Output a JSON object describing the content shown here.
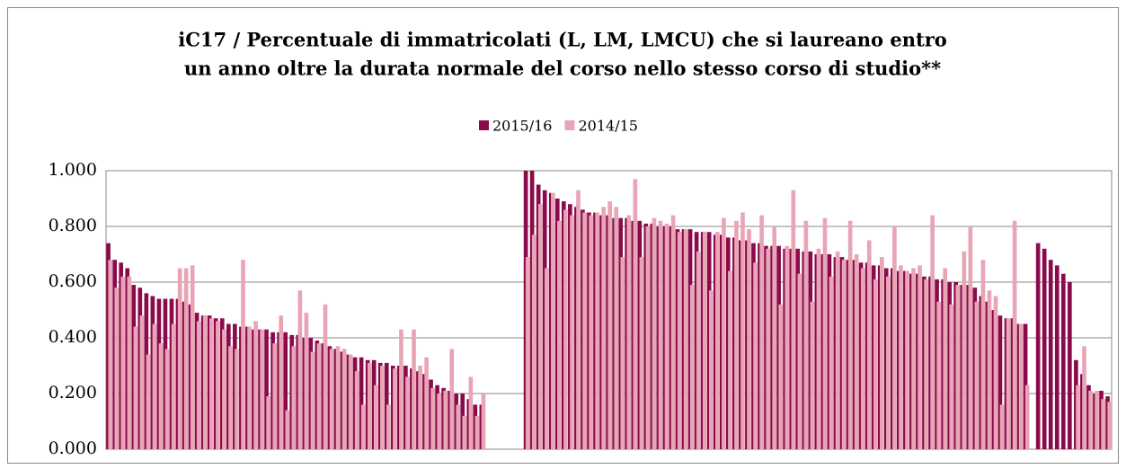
{
  "chart_data": {
    "type": "bar",
    "title": [
      "iC17 / Percentuale di immatricolati (L, LM, LMCU) che si laureano entro",
      "un anno oltre la durata normale del corso nello stesso corso di studio**"
    ],
    "categories": [
      null,
      null,
      null,
      null,
      null,
      null,
      null,
      null,
      null,
      null,
      null,
      null,
      null,
      null,
      null,
      null,
      null,
      null,
      null,
      null,
      null,
      null,
      null,
      null,
      null,
      null,
      null,
      null,
      null,
      null,
      null,
      null,
      null,
      null,
      null,
      null,
      null,
      null,
      null,
      null,
      null,
      null,
      null,
      null,
      null,
      null,
      null,
      null,
      null,
      null,
      null,
      null,
      null,
      null,
      null,
      null,
      null,
      null,
      null,
      null,
      null,
      null,
      null,
      null,
      null,
      null,
      null,
      null,
      null,
      null,
      null,
      null,
      null,
      null,
      null,
      null,
      null,
      null,
      null,
      null,
      null,
      null,
      null,
      null,
      null,
      null,
      null,
      null,
      null,
      null,
      null,
      null,
      null,
      null,
      null,
      null,
      null,
      null,
      null,
      null,
      null,
      null,
      null,
      null,
      null,
      null,
      null,
      null,
      null,
      null,
      null,
      null,
      null,
      null,
      null,
      null,
      null,
      null,
      null,
      null,
      null,
      null,
      null,
      null,
      null,
      null,
      null,
      null,
      null,
      null,
      null,
      null,
      null,
      null,
      null,
      null,
      null,
      null,
      null,
      null,
      null,
      null,
      null,
      null,
      null,
      null,
      null,
      null,
      null,
      null,
      null,
      null,
      null,
      null,
      null,
      null,
      null,
      null,
      null
    ],
    "series": [
      {
        "name": "2015/16",
        "color": "#8b0a4c",
        "values": [
          0.74,
          0.68,
          0.67,
          0.65,
          0.59,
          0.58,
          0.56,
          0.55,
          0.54,
          0.54,
          0.54,
          0.54,
          0.53,
          0.52,
          0.49,
          0.48,
          0.48,
          0.47,
          0.47,
          0.45,
          0.45,
          0.44,
          0.44,
          0.43,
          0.43,
          0.43,
          0.42,
          0.42,
          0.42,
          0.41,
          0.41,
          0.4,
          0.4,
          0.39,
          0.38,
          0.37,
          0.36,
          0.35,
          0.34,
          0.33,
          0.33,
          0.32,
          0.32,
          0.31,
          0.31,
          0.3,
          0.3,
          0.3,
          0.29,
          0.28,
          0.27,
          0.25,
          0.23,
          0.22,
          0.21,
          0.2,
          0.2,
          0.18,
          0.16,
          0.16,
          null,
          null,
          null,
          null,
          null,
          null,
          1.0,
          1.0,
          0.95,
          0.93,
          0.92,
          0.9,
          0.89,
          0.88,
          0.87,
          0.86,
          0.85,
          0.85,
          0.84,
          0.84,
          0.83,
          0.83,
          0.83,
          0.82,
          0.82,
          0.81,
          0.81,
          0.8,
          0.8,
          0.8,
          0.79,
          0.79,
          0.79,
          0.78,
          0.78,
          0.78,
          0.77,
          0.77,
          0.76,
          0.76,
          0.75,
          0.75,
          0.74,
          0.74,
          0.73,
          0.73,
          0.73,
          0.72,
          0.72,
          0.72,
          0.71,
          0.71,
          0.7,
          0.7,
          0.7,
          0.69,
          0.69,
          0.68,
          0.68,
          0.67,
          0.67,
          0.66,
          0.66,
          0.65,
          0.65,
          0.64,
          0.64,
          0.63,
          0.63,
          0.62,
          0.62,
          0.61,
          0.61,
          0.6,
          0.6,
          0.59,
          0.59,
          0.58,
          0.55,
          0.53,
          0.5,
          0.48,
          0.47,
          0.47,
          0.45,
          0.45,
          null,
          0.74,
          0.72,
          0.68,
          0.66,
          0.63,
          0.6,
          0.32,
          0.27,
          0.23,
          0.2,
          0.21,
          0.19
        ]
      },
      {
        "name": "2014/15",
        "color": "#e8a5b5",
        "values": [
          0.68,
          0.58,
          0.62,
          0.62,
          0.44,
          0.48,
          0.34,
          0.45,
          0.38,
          0.36,
          0.45,
          0.65,
          0.65,
          0.66,
          0.46,
          0.48,
          0.47,
          0.46,
          0.43,
          0.37,
          0.36,
          0.68,
          0.44,
          0.46,
          0.43,
          0.19,
          0.38,
          0.48,
          0.14,
          0.37,
          0.57,
          0.49,
          0.35,
          0.38,
          0.52,
          0.36,
          0.37,
          0.36,
          0.34,
          0.28,
          0.16,
          0.31,
          0.23,
          0.3,
          0.16,
          0.29,
          0.43,
          0.26,
          0.43,
          0.3,
          0.33,
          0.22,
          0.2,
          0.21,
          0.36,
          0.16,
          0.12,
          0.26,
          0.12,
          0.2,
          null,
          null,
          null,
          null,
          null,
          null,
          0.69,
          0.77,
          0.88,
          0.65,
          0.92,
          0.82,
          0.86,
          0.84,
          0.93,
          0.85,
          0.84,
          0.85,
          0.87,
          0.89,
          0.87,
          0.69,
          0.84,
          0.97,
          0.69,
          0.8,
          0.83,
          0.82,
          0.81,
          0.84,
          0.78,
          0.79,
          0.59,
          0.71,
          0.78,
          0.57,
          0.78,
          0.83,
          0.64,
          0.82,
          0.85,
          0.79,
          0.67,
          0.84,
          0.72,
          0.8,
          0.52,
          0.73,
          0.93,
          0.63,
          0.82,
          0.53,
          0.72,
          0.83,
          0.62,
          0.71,
          0.68,
          0.82,
          0.7,
          0.65,
          0.75,
          0.61,
          0.69,
          0.62,
          0.8,
          0.66,
          0.64,
          0.65,
          0.66,
          0.61,
          0.84,
          0.53,
          0.65,
          0.52,
          0.59,
          0.71,
          0.8,
          0.53,
          0.68,
          0.57,
          0.55,
          0.16,
          0.47,
          0.82,
          0.45,
          0.23,
          null,
          null,
          null,
          null,
          null,
          null,
          null,
          0.23,
          0.37,
          0.21,
          0.21,
          0.18,
          0.17
        ]
      }
    ],
    "ylim": [
      0,
      1
    ],
    "yticks": [
      {
        "value": 0,
        "label": "0.000"
      },
      {
        "value": 0.2,
        "label": "0.200"
      },
      {
        "value": 0.4,
        "label": "0.400"
      },
      {
        "value": 0.6,
        "label": "0.600"
      },
      {
        "value": 0.8,
        "label": "0.800"
      },
      {
        "value": 1,
        "label": "1.000"
      }
    ],
    "grid": true,
    "legend": "top"
  }
}
